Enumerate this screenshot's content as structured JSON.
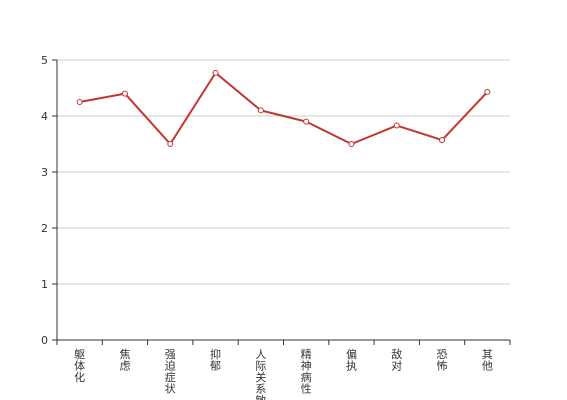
{
  "chart_data": {
    "type": "line",
    "categories": [
      "躯体化",
      "焦虑",
      "强迫症状",
      "抑郁",
      "人际关系敏感",
      "精神病性",
      "偏执",
      "敌对",
      "恐怖",
      "其他"
    ],
    "values": [
      4.25,
      4.4,
      3.5,
      4.77,
      4.1,
      3.9,
      3.5,
      3.83,
      3.57,
      4.43
    ],
    "ylim": [
      0,
      5
    ],
    "yticks": [
      0,
      1,
      2,
      3,
      4,
      5
    ],
    "grid": true,
    "line_color": "#c23531",
    "grid_color": "#cccccc",
    "axis_color": "#333333"
  }
}
